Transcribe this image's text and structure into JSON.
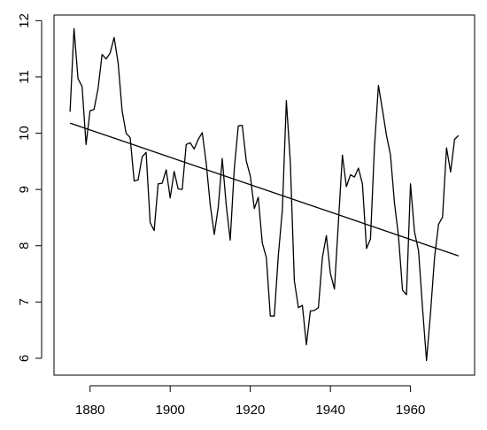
{
  "chart_data": {
    "type": "line",
    "title": "",
    "xlabel": "",
    "ylabel": "",
    "xlim": [
      1871,
      1976
    ],
    "ylim": [
      5.7,
      12.1
    ],
    "x_ticks": [
      1880,
      1900,
      1920,
      1940,
      1960
    ],
    "y_ticks": [
      6,
      7,
      8,
      9,
      10,
      11,
      12
    ],
    "x_tick_labels": [
      "1880",
      "1900",
      "1920",
      "1940",
      "1960"
    ],
    "y_tick_labels": [
      "6",
      "7",
      "8",
      "9",
      "10",
      "11",
      "12"
    ],
    "grid": false,
    "legend": "none",
    "series": [
      {
        "x": [
          1875,
          1876,
          1877,
          1878,
          1879,
          1880,
          1881,
          1882,
          1883,
          1884,
          1885,
          1886,
          1887,
          1888,
          1889,
          1890,
          1891,
          1892,
          1893,
          1894,
          1895,
          1896,
          1897,
          1898,
          1899,
          1900,
          1901,
          1902,
          1903,
          1904,
          1905,
          1906,
          1907,
          1908,
          1909,
          1910,
          1911,
          1912,
          1913,
          1914,
          1915,
          1916,
          1917,
          1918,
          1919,
          1920,
          1921,
          1922,
          1923,
          1924,
          1925,
          1926,
          1927,
          1928,
          1929,
          1930,
          1931,
          1932,
          1933,
          1934,
          1935,
          1936,
          1937,
          1938,
          1939,
          1940,
          1941,
          1942,
          1943,
          1944,
          1945,
          1946,
          1947,
          1948,
          1949,
          1950,
          1951,
          1952,
          1953,
          1954,
          1955,
          1956,
          1957,
          1958,
          1959,
          1960,
          1961,
          1962,
          1963,
          1964,
          1965,
          1966,
          1967,
          1968,
          1969,
          1970,
          1971,
          1972
        ],
        "values": [
          10.38,
          11.86,
          10.97,
          10.83,
          9.8,
          10.4,
          10.42,
          10.8,
          11.4,
          11.32,
          11.42,
          11.7,
          11.25,
          10.4,
          10.0,
          9.92,
          9.15,
          9.17,
          9.58,
          9.66,
          8.41,
          8.27,
          9.1,
          9.11,
          9.35,
          8.85,
          9.32,
          9.01,
          9.0,
          9.8,
          9.83,
          9.72,
          9.89,
          10.01,
          9.47,
          8.73,
          8.2,
          8.69,
          9.55,
          8.72,
          8.1,
          9.37,
          10.13,
          10.14,
          9.51,
          9.24,
          8.66,
          8.86,
          8.05,
          7.79,
          6.75,
          6.75,
          7.82,
          8.64,
          10.58,
          9.48,
          7.38,
          6.9,
          6.94,
          6.24,
          6.84,
          6.85,
          6.9,
          7.79,
          8.18,
          7.51,
          7.23,
          8.42,
          9.61,
          9.05,
          9.26,
          9.22,
          9.38,
          9.1,
          7.95,
          8.12,
          9.75,
          10.85,
          10.41,
          9.96,
          9.61,
          8.76,
          8.18,
          7.21,
          7.13,
          9.1,
          8.25,
          7.91,
          6.89,
          5.96,
          6.8,
          7.8,
          8.38,
          8.51,
          9.74,
          9.31,
          9.89,
          9.96
        ]
      },
      {
        "x": [
          1875,
          1972
        ],
        "values": [
          10.18,
          7.82
        ]
      }
    ]
  }
}
